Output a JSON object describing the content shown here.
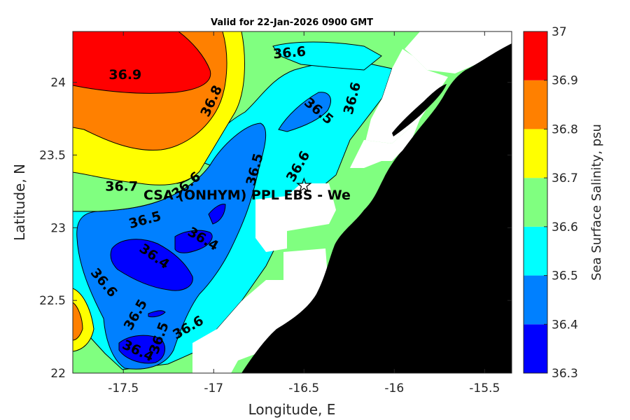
{
  "chart_data": {
    "type": "contour",
    "title": "Valid for 22-Jan-2026 0900 GMT",
    "xlabel": "Longitude, E",
    "ylabel": "Latitude, N",
    "xlim": [
      -17.78,
      -15.35
    ],
    "ylim": [
      22,
      24.35
    ],
    "xticks": [
      -17.5,
      -17,
      -16.5,
      -16,
      -15.5
    ],
    "xtick_labels": [
      "-17.5",
      "-17",
      "-16.5",
      "-16",
      "-15.5"
    ],
    "yticks": [
      22,
      22.5,
      23,
      23.5,
      24
    ],
    "ytick_labels": [
      "22",
      "22.5",
      "23",
      "23.5",
      "24"
    ],
    "colorbar": {
      "label": "Sea Surface Salinity, psu",
      "levels": [
        36.3,
        36.4,
        36.5,
        36.6,
        36.7,
        36.8,
        36.9,
        37
      ],
      "tick_labels": [
        "36.3",
        "36.4",
        "36.5",
        "36.6",
        "36.7",
        "36.8",
        "36.9",
        "37"
      ],
      "colors": [
        "#0000ff",
        "#0080ff",
        "#00ffff",
        "#80ff80",
        "#ffff00",
        "#ff8000",
        "#ff0000"
      ]
    },
    "land_color": "#000000",
    "nodata_color": "#ffffff",
    "contour_labels": [
      {
        "text": "36.9",
        "lon": -17.49,
        "lat": 24.05,
        "angle": 0
      },
      {
        "text": "36.8",
        "lon": -17.01,
        "lat": 23.87,
        "angle": -65
      },
      {
        "text": "36.6",
        "lon": -16.58,
        "lat": 24.2,
        "angle": -5
      },
      {
        "text": "36.6",
        "lon": -16.23,
        "lat": 23.89,
        "angle": -75
      },
      {
        "text": "36.5",
        "lon": -16.42,
        "lat": 23.8,
        "angle": 40
      },
      {
        "text": "36.6",
        "lon": -16.53,
        "lat": 23.42,
        "angle": -60
      },
      {
        "text": "36.5",
        "lon": -16.77,
        "lat": 23.4,
        "angle": -75
      },
      {
        "text": "36.7",
        "lon": -17.51,
        "lat": 23.28,
        "angle": 0
      },
      {
        "text": "36.6",
        "lon": -17.15,
        "lat": 23.29,
        "angle": -40
      },
      {
        "text": "36.5",
        "lon": -17.38,
        "lat": 23.05,
        "angle": -15
      },
      {
        "text": "36.4",
        "lon": -17.06,
        "lat": 22.92,
        "angle": 30
      },
      {
        "text": "36.4",
        "lon": -17.33,
        "lat": 22.8,
        "angle": 35
      },
      {
        "text": "36.6",
        "lon": -17.61,
        "lat": 22.62,
        "angle": 50
      },
      {
        "text": "36.5",
        "lon": -17.43,
        "lat": 22.4,
        "angle": -60
      },
      {
        "text": "36.5",
        "lon": -17.3,
        "lat": 22.24,
        "angle": -70
      },
      {
        "text": "36.6",
        "lon": -17.14,
        "lat": 22.31,
        "angle": -30
      },
      {
        "text": "36.4",
        "lon": -17.42,
        "lat": 22.15,
        "angle": 25
      }
    ],
    "site": {
      "name": "CSA (ONHYM) PPL EBS  - We",
      "lon": -16.5,
      "lat": 23.29,
      "marker": "star"
    }
  }
}
